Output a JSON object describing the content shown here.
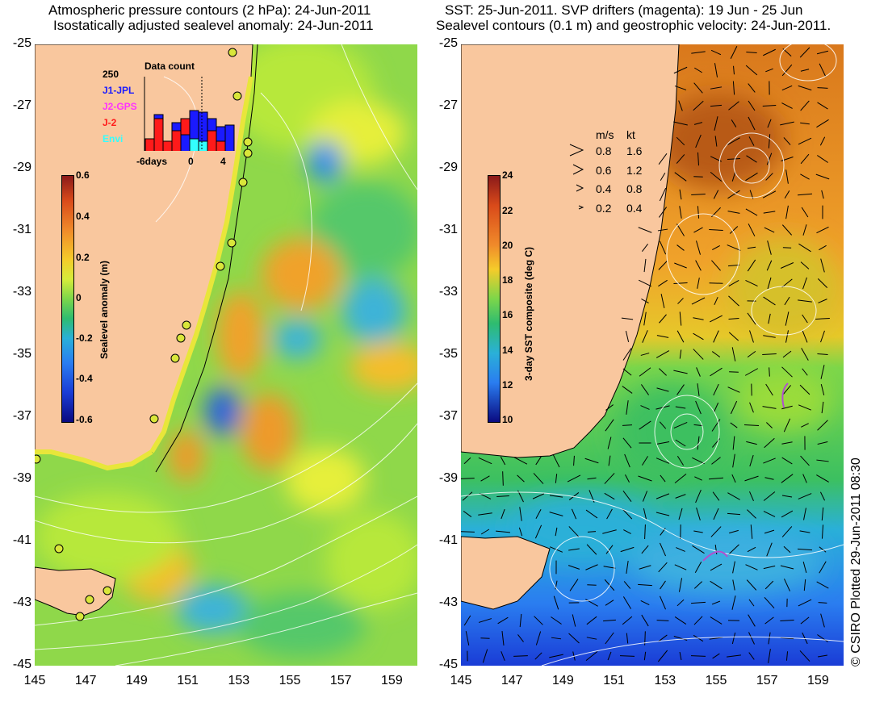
{
  "left_panel": {
    "title_line1": "Atmospheric pressure contours (2 hPa): 24-Jun-2011",
    "title_line2": "Isostatically adjusted sealevel anomaly: 24-Jun-2011",
    "colorbar": {
      "label": "Sealevel anomaly (m)",
      "ticks": [
        "0.6",
        "0.4",
        "0.2",
        "0",
        "-0.2",
        "-0.4",
        "-0.6"
      ]
    },
    "data_count": {
      "title": "Data count",
      "max_label": "250",
      "x_labels": [
        "-6days",
        "0",
        "4"
      ],
      "missions": [
        {
          "name": "J1-JPL",
          "color": "#1a1aff"
        },
        {
          "name": "J2-GPS",
          "color": "#ff33ff"
        },
        {
          "name": "J-2",
          "color": "#ff1a1a"
        },
        {
          "name": "Envi",
          "color": "#33ffff"
        }
      ]
    }
  },
  "right_panel": {
    "title_line1": "SST: 25-Jun-2011. SVP drifters (magenta): 19 Jun - 25 Jun",
    "title_line2": "Sealevel contours (0.1 m) and geostrophic velocity: 24-Jun-2011.",
    "colorbar": {
      "label": "3-day SST composite (deg C)",
      "ticks": [
        "24",
        "22",
        "20",
        "18",
        "16",
        "14",
        "12",
        "10"
      ]
    },
    "velocity_legend": {
      "header_ms": "m/s",
      "header_kt": "kt",
      "rows": [
        {
          "ms": "0.8",
          "kt": "1.6"
        },
        {
          "ms": "0.6",
          "kt": "1.2"
        },
        {
          "ms": "0.4",
          "kt": "0.8"
        },
        {
          "ms": "0.2",
          "kt": "0.4"
        }
      ]
    }
  },
  "axes": {
    "lat_ticks": [
      "-25",
      "-27",
      "-29",
      "-31",
      "-33",
      "-35",
      "-37",
      "-39",
      "-41",
      "-43",
      "-45"
    ],
    "lon_ticks": [
      "145",
      "147",
      "149",
      "151",
      "153",
      "155",
      "157",
      "159"
    ]
  },
  "credit": "© CSIRO Plotted 29-Jun-2011 08:30",
  "colors": {
    "land": "#f9c79e",
    "ocean_green": "#7cd64a",
    "sst_warm": "#d9781c",
    "sst_cool": "#2a8ff0"
  }
}
